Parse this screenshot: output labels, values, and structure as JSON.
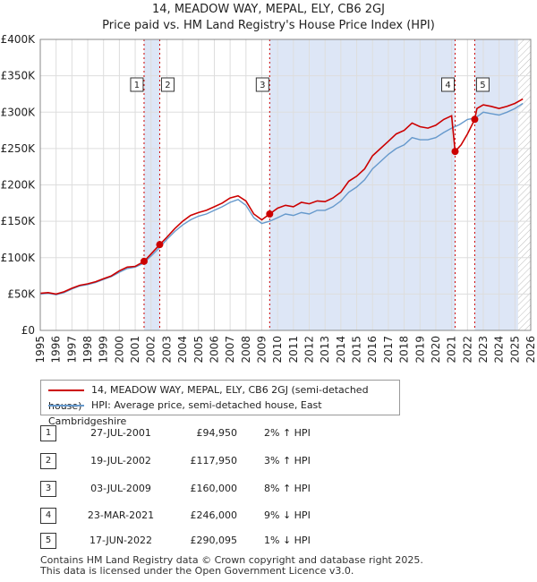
{
  "title_line1": "14, MEADOW WAY, MEPAL, ELY, CB6 2GJ",
  "title_line2": "Price paid vs. HM Land Registry's House Price Index (HPI)",
  "colors": {
    "property": "#cc0000",
    "hpi": "#6699cc",
    "shade": "#dde6f6",
    "grid": "#dddddd"
  },
  "chart_data": {
    "type": "line",
    "ylim": [
      0,
      400000
    ],
    "xlim": [
      1995,
      2026
    ],
    "y_ticks": [
      {
        "value": 0,
        "label": "£0"
      },
      {
        "value": 50000,
        "label": "£50K"
      },
      {
        "value": 100000,
        "label": "£100K"
      },
      {
        "value": 150000,
        "label": "£150K"
      },
      {
        "value": 200000,
        "label": "£200K"
      },
      {
        "value": 250000,
        "label": "£250K"
      },
      {
        "value": 300000,
        "label": "£300K"
      },
      {
        "value": 350000,
        "label": "£350K"
      },
      {
        "value": 400000,
        "label": "£400K"
      }
    ],
    "x_ticks": [
      "1995",
      "1996",
      "1997",
      "1998",
      "1999",
      "2000",
      "2001",
      "2002",
      "2003",
      "2004",
      "2005",
      "2006",
      "2007",
      "2008",
      "2009",
      "2010",
      "2011",
      "2012",
      "2013",
      "2014",
      "2015",
      "2016",
      "2017",
      "2018",
      "2019",
      "2020",
      "2021",
      "2022",
      "2023",
      "2024",
      "2025",
      "2026"
    ],
    "grid": true,
    "legend_position": "below",
    "series": [
      {
        "name": "14, MEADOW WAY, MEPAL, ELY, CB6 2GJ (semi-detached house)",
        "x": [
          1995.0,
          1995.5,
          1996.0,
          1996.5,
          1997.0,
          1997.5,
          1998.0,
          1998.5,
          1999.0,
          1999.5,
          2000.0,
          2000.5,
          2001.0,
          2001.56,
          2002.0,
          2002.55,
          2003.0,
          2003.5,
          2004.0,
          2004.5,
          2005.0,
          2005.5,
          2006.0,
          2006.5,
          2007.0,
          2007.5,
          2008.0,
          2008.5,
          2009.0,
          2009.5,
          2010.0,
          2010.5,
          2011.0,
          2011.5,
          2012.0,
          2012.5,
          2013.0,
          2013.5,
          2014.0,
          2014.5,
          2015.0,
          2015.5,
          2016.0,
          2016.5,
          2017.0,
          2017.5,
          2018.0,
          2018.5,
          2019.0,
          2019.5,
          2020.0,
          2020.5,
          2021.0,
          2021.22,
          2021.6,
          2022.0,
          2022.46,
          2022.6,
          2023.0,
          2023.5,
          2024.0,
          2024.5,
          2025.0,
          2025.5
        ],
        "y": [
          51000,
          52000,
          50000,
          53000,
          58000,
          62000,
          64000,
          67000,
          71000,
          75000,
          82000,
          87000,
          88000,
          94950,
          105000,
          117950,
          128000,
          140000,
          150000,
          158000,
          162000,
          165000,
          170000,
          175000,
          182000,
          185000,
          178000,
          160000,
          152000,
          160000,
          168000,
          172000,
          170000,
          176000,
          174000,
          178000,
          177000,
          182000,
          190000,
          205000,
          212000,
          222000,
          240000,
          250000,
          260000,
          270000,
          275000,
          285000,
          280000,
          278000,
          282000,
          290000,
          295000,
          246000,
          255000,
          270000,
          290095,
          305000,
          310000,
          308000,
          305000,
          308000,
          312000,
          318000
        ]
      },
      {
        "name": "HPI: Average price, semi-detached house, East Cambridgeshire",
        "x": [
          1995.0,
          1995.5,
          1996.0,
          1996.5,
          1997.0,
          1997.5,
          1998.0,
          1998.5,
          1999.0,
          1999.5,
          2000.0,
          2000.5,
          2001.0,
          2001.5,
          2002.0,
          2002.5,
          2003.0,
          2003.5,
          2004.0,
          2004.5,
          2005.0,
          2005.5,
          2006.0,
          2006.5,
          2007.0,
          2007.5,
          2008.0,
          2008.5,
          2009.0,
          2009.5,
          2010.0,
          2010.5,
          2011.0,
          2011.5,
          2012.0,
          2012.5,
          2013.0,
          2013.5,
          2014.0,
          2014.5,
          2015.0,
          2015.5,
          2016.0,
          2016.5,
          2017.0,
          2017.5,
          2018.0,
          2018.5,
          2019.0,
          2019.5,
          2020.0,
          2020.5,
          2021.0,
          2021.5,
          2022.0,
          2022.5,
          2023.0,
          2023.5,
          2024.0,
          2024.5,
          2025.0,
          2025.5
        ],
        "y": [
          50000,
          51000,
          49000,
          52000,
          57000,
          61000,
          63000,
          66000,
          70000,
          74000,
          80000,
          85000,
          87000,
          92000,
          102000,
          113000,
          125000,
          136000,
          145000,
          152000,
          157000,
          160000,
          165000,
          170000,
          176000,
          180000,
          172000,
          155000,
          147000,
          150000,
          155000,
          160000,
          158000,
          162000,
          160000,
          165000,
          165000,
          170000,
          178000,
          190000,
          197000,
          207000,
          222000,
          232000,
          242000,
          250000,
          255000,
          265000,
          262000,
          262000,
          265000,
          272000,
          278000,
          283000,
          290000,
          292000,
          300000,
          298000,
          296000,
          300000,
          305000,
          312000
        ]
      }
    ],
    "transactions": [
      {
        "num": "1",
        "x": 2001.56,
        "y": 94950,
        "date": "27-JUL-2001",
        "price": "£94,950",
        "hpi": "2% ↑ HPI"
      },
      {
        "num": "2",
        "x": 2002.55,
        "y": 117950,
        "date": "19-JUL-2002",
        "price": "£117,950",
        "hpi": "3% ↑ HPI"
      },
      {
        "num": "3",
        "x": 2009.5,
        "y": 160000,
        "date": "03-JUL-2009",
        "price": "£160,000",
        "hpi": "8% ↑ HPI"
      },
      {
        "num": "4",
        "x": 2021.22,
        "y": 246000,
        "date": "23-MAR-2021",
        "price": "£246,000",
        "hpi": "9% ↓ HPI"
      },
      {
        "num": "5",
        "x": 2022.46,
        "y": 290095,
        "date": "17-JUN-2022",
        "price": "£290,095",
        "hpi": "1% ↓ HPI"
      }
    ]
  },
  "footer_line1": "Contains HM Land Registry data © Crown copyright and database right 2025.",
  "footer_line2": "This data is licensed under the Open Government Licence v3.0."
}
